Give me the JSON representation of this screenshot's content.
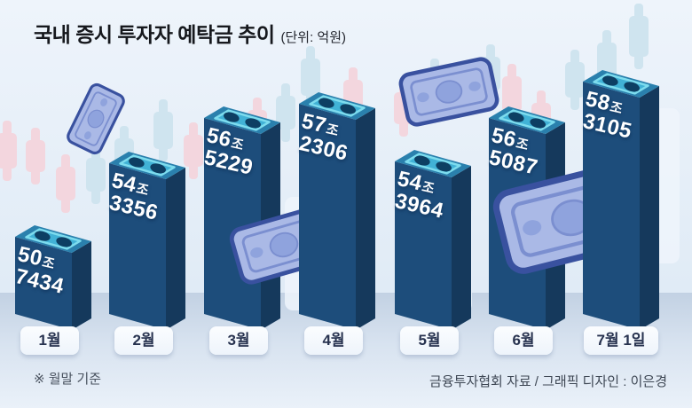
{
  "header": {
    "title": "국내 증시 투자자 예탁금 추이",
    "unit": "(단위: 억원)"
  },
  "footer": {
    "note": "※ 월말 기준",
    "source": "금융투자협회 자료 / 그래픽 디자인 : 이은경"
  },
  "chart_data": {
    "type": "bar",
    "title": "국내 증시 투자자 예탁금 추이",
    "unit_label": "(단위: 억원)",
    "unit": "억원",
    "categories": [
      "1월",
      "2월",
      "3월",
      "4월",
      "5월",
      "6월",
      "7월 1일"
    ],
    "values": [
      507434,
      543356,
      565229,
      572306,
      543964,
      565087,
      583105
    ],
    "value_labels": [
      [
        "50조",
        "7434"
      ],
      [
        "54조",
        "3356"
      ],
      [
        "56조",
        "5229"
      ],
      [
        "57조",
        "2306"
      ],
      [
        "54조",
        "3964"
      ],
      [
        "56조",
        "5087"
      ],
      [
        "58조",
        "3105"
      ]
    ],
    "note": "※ 월말 기준",
    "source": "금융투자협회 자료 / 그래픽 디자인 : 이은경",
    "ylim": [
      470000,
      600000
    ],
    "grid": false,
    "legend": "none"
  },
  "decor": {
    "banknotes": [
      "falling-banknote",
      "flying-banknote",
      "folded-banknote",
      "large-banknote"
    ],
    "candlestick_colors": [
      "pink",
      "blue",
      "white"
    ]
  },
  "colors": {
    "bar_front": "#1d4d7b",
    "bar_side": "#15395c",
    "bar_top": "#2a80ad",
    "bar_plate": "#41b2d6",
    "bar_plate_edge": "#7ddcee",
    "bar_hole": "#0d3f63",
    "value_text": "#ffffff",
    "month_bg": "#f7fafd",
    "month_text": "#27324f",
    "note_fill": "#aab9e6",
    "note_stroke": "#39519f",
    "note_inner": "#7b8fd0",
    "note_ellipse": "#8fa3dd",
    "candle_pink": "#f3d6de",
    "candle_blue": "#cfe4ef",
    "candle_white": "#eef5fb",
    "sky_top": "#eef4fb",
    "sky_bottom": "#dbe7f3",
    "ground_top": "#c2d1e3",
    "ground_bottom": "#eaf1f9"
  }
}
